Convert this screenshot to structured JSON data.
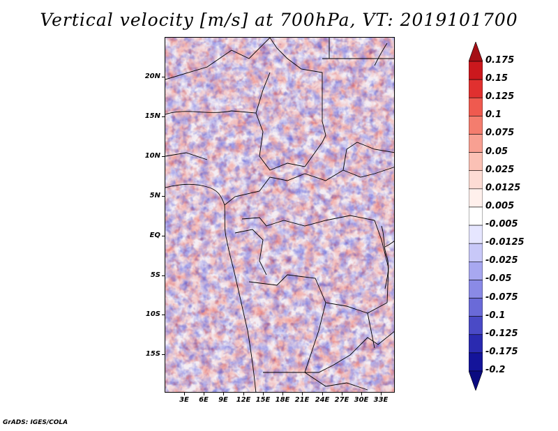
{
  "title": "Vertical velocity [m/s] at 700hPa, VT: 2019101700",
  "footer": "GrADS: IGES/COLA",
  "map": {
    "latitude_labels": [
      "20N",
      "15N",
      "10N",
      "5N",
      "EQ",
      "5S",
      "10S",
      "15S"
    ],
    "longitude_labels": [
      "3E",
      "6E",
      "9E",
      "12E",
      "15E",
      "18E",
      "21E",
      "24E",
      "27E",
      "30E",
      "33E"
    ],
    "lon_range": [
      0,
      35
    ],
    "lat_range": [
      -20,
      25
    ]
  },
  "colorbar": {
    "labels": [
      "0.175",
      "0.15",
      "0.125",
      "0.1",
      "0.075",
      "0.05",
      "0.025",
      "0.0125",
      "0.005",
      "-0.005",
      "-0.0125",
      "-0.025",
      "-0.05",
      "-0.075",
      "-0.1",
      "-0.125",
      "-0.175",
      "-0.2"
    ],
    "colors": [
      "#a50f15",
      "#cb181d",
      "#e0302f",
      "#ef5a4f",
      "#f47d6e",
      "#f8a092",
      "#fbc1b5",
      "#fddcd4",
      "#fff0ec",
      "#ffffff",
      "#e6e6ff",
      "#c8c8f8",
      "#a8a8f0",
      "#8a8ae6",
      "#6a6ad8",
      "#4a4ac6",
      "#2a2ab0",
      "#14149a",
      "#0a0a80"
    ]
  }
}
